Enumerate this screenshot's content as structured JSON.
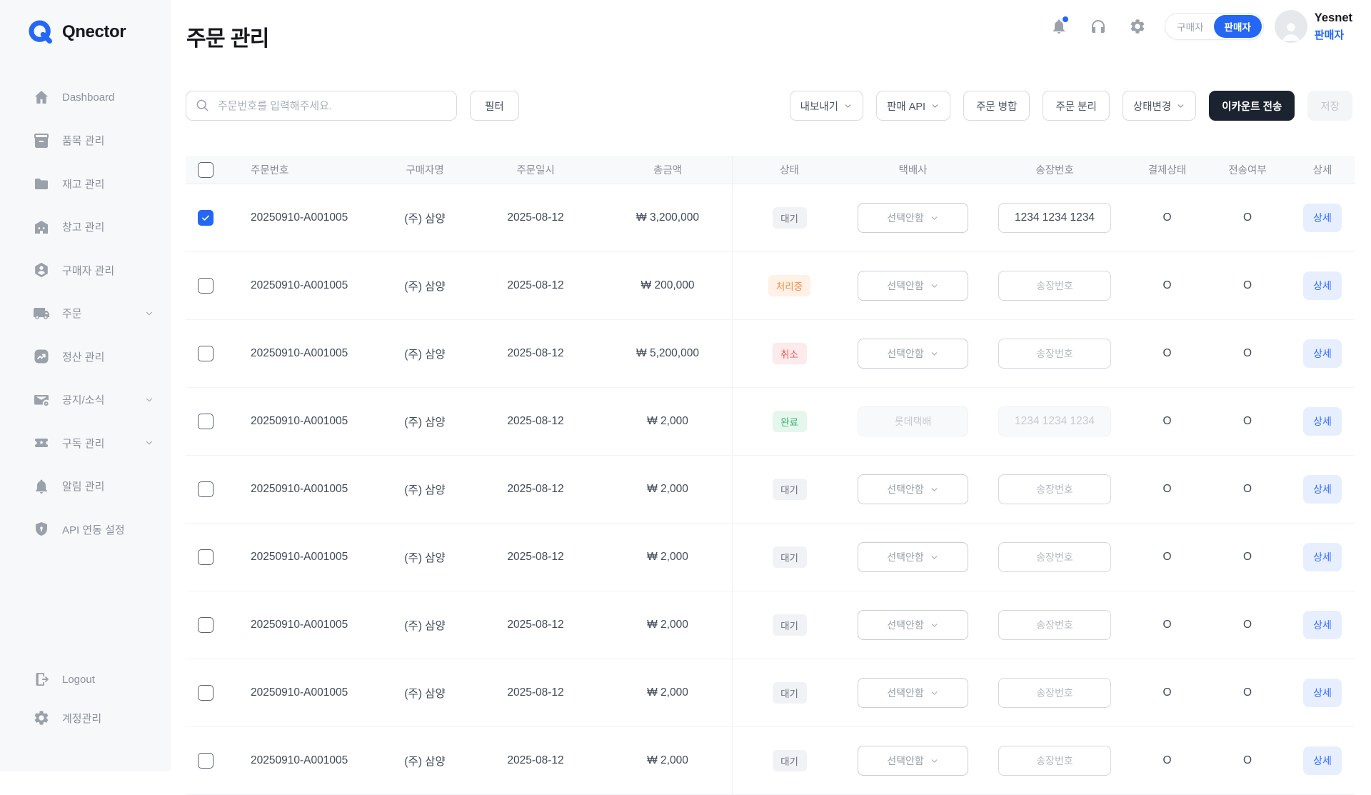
{
  "brand": {
    "name": "Qnector"
  },
  "sidebar": {
    "items": [
      {
        "label": "Dashboard",
        "icon": "home-icon",
        "chevron": false
      },
      {
        "label": "품목 관리",
        "icon": "package-icon",
        "chevron": false
      },
      {
        "label": "재고 관리",
        "icon": "folder-icon",
        "chevron": false
      },
      {
        "label": "창고 관리",
        "icon": "warehouse-icon",
        "chevron": false
      },
      {
        "label": "구매자 관리",
        "icon": "buyer-icon",
        "chevron": false
      },
      {
        "label": "주문",
        "icon": "truck-icon",
        "chevron": true
      },
      {
        "label": "정산 관리",
        "icon": "settlement-chart-icon",
        "chevron": false
      },
      {
        "label": "공지/소식",
        "icon": "notice-mail-icon",
        "chevron": true
      },
      {
        "label": "구독 관리",
        "icon": "subscription-ticket-icon",
        "chevron": true
      },
      {
        "label": "알림 관리",
        "icon": "bell-icon",
        "chevron": false
      },
      {
        "label": "API 연동 설정",
        "icon": "shield-icon",
        "chevron": false
      }
    ],
    "footer_items": [
      {
        "label": "Logout",
        "icon": "logout-icon"
      },
      {
        "label": "계정관리",
        "icon": "gear-icon"
      }
    ]
  },
  "header": {
    "title": "주문 관리",
    "role_toggle": {
      "buyer_label": "구매자",
      "seller_label": "판매자",
      "active": "판매자"
    },
    "user": {
      "name": "Yesnet",
      "role": "판매자"
    }
  },
  "toolbar": {
    "search_placeholder": "주문번호를 입력해주세요.",
    "filter_label": "필터",
    "export_label": "내보내기",
    "sales_api_label": "판매 API",
    "merge_label": "주문 병합",
    "split_label": "주문 분리",
    "status_change_label": "상태변경",
    "ecount_label": "이카운트 전송",
    "save_label": "저장"
  },
  "table": {
    "columns": [
      "주문번호",
      "구매자명",
      "주문일시",
      "총금액",
      "상태",
      "택배사",
      "송장번호",
      "결제상태",
      "전송여부",
      "상세"
    ],
    "courier_placeholder": "선택안함",
    "invoice_placeholder": "송장번호",
    "detail_label": "상세",
    "rows": [
      {
        "checked": true,
        "order_no": "20250910-A001005",
        "buyer": "(주) 삼양",
        "date": "2025-08-12",
        "amount": "₩ 3,200,000",
        "status": "대기",
        "status_type": "wait",
        "fields_disabled": false,
        "courier": "",
        "invoice": "1234 1234 1234",
        "payment": "O",
        "transfer": "O"
      },
      {
        "checked": false,
        "order_no": "20250910-A001005",
        "buyer": "(주) 삼양",
        "date": "2025-08-12",
        "amount": "₩ 200,000",
        "status": "처리중",
        "status_type": "processing",
        "fields_disabled": false,
        "courier": "",
        "invoice": "",
        "payment": "O",
        "transfer": "O"
      },
      {
        "checked": false,
        "order_no": "20250910-A001005",
        "buyer": "(주) 삼양",
        "date": "2025-08-12",
        "amount": "₩ 5,200,000",
        "status": "취소",
        "status_type": "cancel",
        "fields_disabled": false,
        "courier": "",
        "invoice": "",
        "payment": "O",
        "transfer": "O"
      },
      {
        "checked": false,
        "order_no": "20250910-A001005",
        "buyer": "(주) 삼양",
        "date": "2025-08-12",
        "amount": "₩ 2,000",
        "status": "완료",
        "status_type": "done",
        "fields_disabled": true,
        "courier": "롯데택배",
        "invoice": "1234 1234 1234",
        "payment": "O",
        "transfer": "O"
      },
      {
        "checked": false,
        "order_no": "20250910-A001005",
        "buyer": "(주) 삼양",
        "date": "2025-08-12",
        "amount": "₩ 2,000",
        "status": "대기",
        "status_type": "wait",
        "fields_disabled": false,
        "courier": "",
        "invoice": "",
        "payment": "O",
        "transfer": "O"
      },
      {
        "checked": false,
        "order_no": "20250910-A001005",
        "buyer": "(주) 삼양",
        "date": "2025-08-12",
        "amount": "₩ 2,000",
        "status": "대기",
        "status_type": "wait",
        "fields_disabled": false,
        "courier": "",
        "invoice": "",
        "payment": "O",
        "transfer": "O"
      },
      {
        "checked": false,
        "order_no": "20250910-A001005",
        "buyer": "(주) 삼양",
        "date": "2025-08-12",
        "amount": "₩ 2,000",
        "status": "대기",
        "status_type": "wait",
        "fields_disabled": false,
        "courier": "",
        "invoice": "",
        "payment": "O",
        "transfer": "O"
      },
      {
        "checked": false,
        "order_no": "20250910-A001005",
        "buyer": "(주) 삼양",
        "date": "2025-08-12",
        "amount": "₩ 2,000",
        "status": "대기",
        "status_type": "wait",
        "fields_disabled": false,
        "courier": "",
        "invoice": "",
        "payment": "O",
        "transfer": "O"
      },
      {
        "checked": false,
        "order_no": "20250910-A001005",
        "buyer": "(주) 삼양",
        "date": "2025-08-12",
        "amount": "₩ 2,000",
        "status": "대기",
        "status_type": "wait",
        "fields_disabled": false,
        "courier": "",
        "invoice": "",
        "payment": "O",
        "transfer": "O"
      }
    ]
  },
  "colors": {
    "brand_blue": "#2467f4",
    "sidebar_bg": "#f7f8fa",
    "dark_button_bg": "#1c2330",
    "status_wait_bg": "#f1f2f5",
    "status_wait_text": "#6a7280",
    "status_processing_bg": "#fff1e5",
    "status_processing_text": "#f08e4a",
    "status_cancel_bg": "#fdeaea",
    "status_cancel_text": "#e25c5c",
    "status_done_bg": "#e5f7ec",
    "status_done_text": "#3bb273",
    "detail_button_bg": "#e7efff",
    "detail_button_text": "#2e6bfa"
  }
}
